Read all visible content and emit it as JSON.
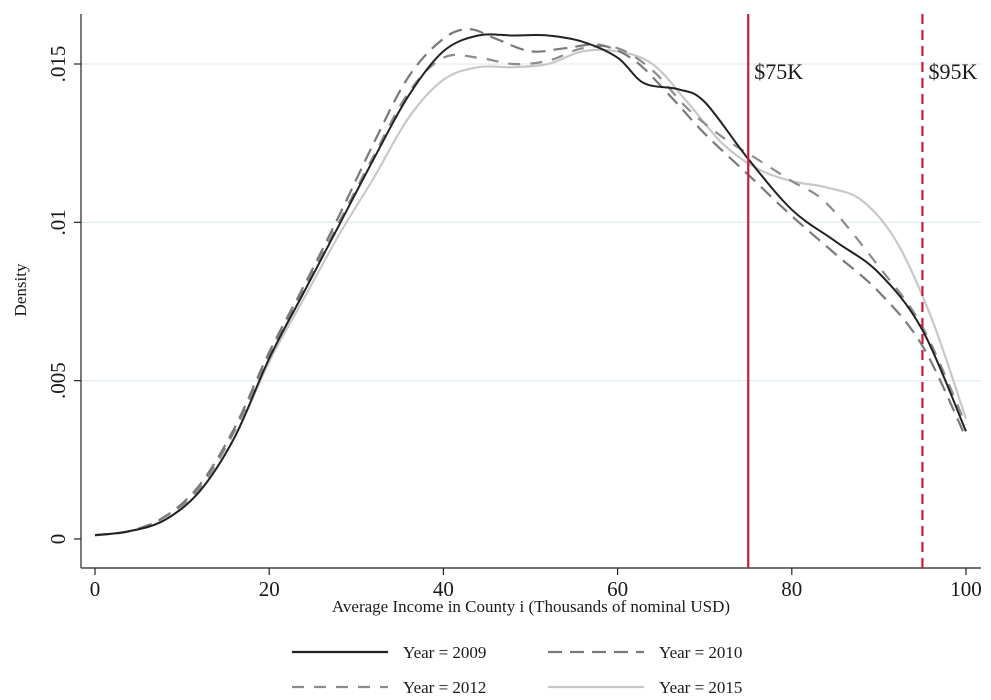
{
  "chart_data": {
    "type": "line",
    "title": "",
    "xlabel": "Average Income in County i (Thousands of nominal USD)",
    "ylabel": "Density",
    "xlim": [
      0,
      100
    ],
    "ylim": [
      0,
      0.0165
    ],
    "x_ticks": [
      {
        "value": 0,
        "label": "0"
      },
      {
        "value": 20,
        "label": "20"
      },
      {
        "value": 40,
        "label": "40"
      },
      {
        "value": 60,
        "label": "60"
      },
      {
        "value": 80,
        "label": "80"
      },
      {
        "value": 100,
        "label": "100"
      }
    ],
    "y_ticks": [
      {
        "value": 0,
        "label": "0"
      },
      {
        "value": 0.005,
        "label": ".005"
      },
      {
        "value": 0.01,
        "label": ".01"
      },
      {
        "value": 0.015,
        "label": ".015"
      }
    ],
    "grid": "horizontal",
    "legend_position": "bottom",
    "series": [
      {
        "name": "Year = 2009",
        "color": "#222222",
        "dash": "solid",
        "points": [
          [
            0,
            0.00012
          ],
          [
            4,
            0.00025
          ],
          [
            8,
            0.0006
          ],
          [
            12,
            0.0015
          ],
          [
            16,
            0.0032
          ],
          [
            20,
            0.0057
          ],
          [
            24,
            0.0078
          ],
          [
            28,
            0.0099
          ],
          [
            32,
            0.012
          ],
          [
            36,
            0.014
          ],
          [
            40,
            0.0154
          ],
          [
            44,
            0.0159
          ],
          [
            48,
            0.0159
          ],
          [
            52,
            0.0159
          ],
          [
            56,
            0.0157
          ],
          [
            60,
            0.0152
          ],
          [
            63,
            0.0144
          ],
          [
            67,
            0.0142
          ],
          [
            70,
            0.0138
          ],
          [
            75,
            0.012
          ],
          [
            80,
            0.0104
          ],
          [
            85,
            0.0094
          ],
          [
            90,
            0.0084
          ],
          [
            95,
            0.0066
          ],
          [
            100,
            0.0034
          ]
        ]
      },
      {
        "name": "Year = 2010",
        "color": "#7a7a7a",
        "dash": "long",
        "points": [
          [
            0,
            0.00012
          ],
          [
            4,
            0.00025
          ],
          [
            8,
            0.0007
          ],
          [
            12,
            0.0017
          ],
          [
            16,
            0.0035
          ],
          [
            20,
            0.0059
          ],
          [
            24,
            0.008
          ],
          [
            28,
            0.0102
          ],
          [
            32,
            0.0125
          ],
          [
            36,
            0.0146
          ],
          [
            40,
            0.0158
          ],
          [
            43,
            0.0161
          ],
          [
            46,
            0.0158
          ],
          [
            50,
            0.0154
          ],
          [
            54,
            0.0155
          ],
          [
            58,
            0.0156
          ],
          [
            62,
            0.0151
          ],
          [
            66,
            0.014
          ],
          [
            70,
            0.0128
          ],
          [
            75,
            0.0115
          ],
          [
            80,
            0.0102
          ],
          [
            85,
            0.009
          ],
          [
            90,
            0.0078
          ],
          [
            95,
            0.0061
          ],
          [
            100,
            0.0032
          ]
        ]
      },
      {
        "name": "Year = 2012",
        "color": "#8c8c8c",
        "dash": "short",
        "points": [
          [
            0,
            0.00012
          ],
          [
            4,
            0.00025
          ],
          [
            8,
            0.0007
          ],
          [
            12,
            0.0016
          ],
          [
            16,
            0.0034
          ],
          [
            20,
            0.0058
          ],
          [
            24,
            0.0079
          ],
          [
            28,
            0.01
          ],
          [
            32,
            0.0121
          ],
          [
            36,
            0.0141
          ],
          [
            40,
            0.0152
          ],
          [
            44,
            0.0152
          ],
          [
            48,
            0.015
          ],
          [
            52,
            0.0151
          ],
          [
            56,
            0.0155
          ],
          [
            60,
            0.0155
          ],
          [
            64,
            0.0148
          ],
          [
            68,
            0.0136
          ],
          [
            72,
            0.0127
          ],
          [
            76,
            0.012
          ],
          [
            80,
            0.0113
          ],
          [
            84,
            0.0106
          ],
          [
            90,
            0.0086
          ],
          [
            95,
            0.0067
          ],
          [
            100,
            0.0036
          ]
        ]
      },
      {
        "name": "Year = 2015",
        "color": "#c8c8c8",
        "dash": "solid",
        "points": [
          [
            0,
            0.00012
          ],
          [
            4,
            0.00025
          ],
          [
            8,
            0.0006
          ],
          [
            12,
            0.0015
          ],
          [
            16,
            0.0032
          ],
          [
            20,
            0.0056
          ],
          [
            24,
            0.0076
          ],
          [
            28,
            0.0096
          ],
          [
            32,
            0.0114
          ],
          [
            36,
            0.0133
          ],
          [
            40,
            0.0145
          ],
          [
            44,
            0.0149
          ],
          [
            48,
            0.0149
          ],
          [
            52,
            0.015
          ],
          [
            56,
            0.0154
          ],
          [
            60,
            0.0154
          ],
          [
            64,
            0.015
          ],
          [
            68,
            0.0138
          ],
          [
            72,
            0.0125
          ],
          [
            76,
            0.0117
          ],
          [
            80,
            0.0113
          ],
          [
            84,
            0.0111
          ],
          [
            88,
            0.0107
          ],
          [
            92,
            0.0094
          ],
          [
            96,
            0.007
          ],
          [
            100,
            0.0038
          ]
        ]
      }
    ],
    "reference_lines": [
      {
        "x": 75,
        "label": "$75K",
        "color": "#c41e3a",
        "dash": "solid"
      },
      {
        "x": 95,
        "label": "$95K",
        "color": "#c41e3a",
        "dash": "dashed"
      }
    ]
  }
}
